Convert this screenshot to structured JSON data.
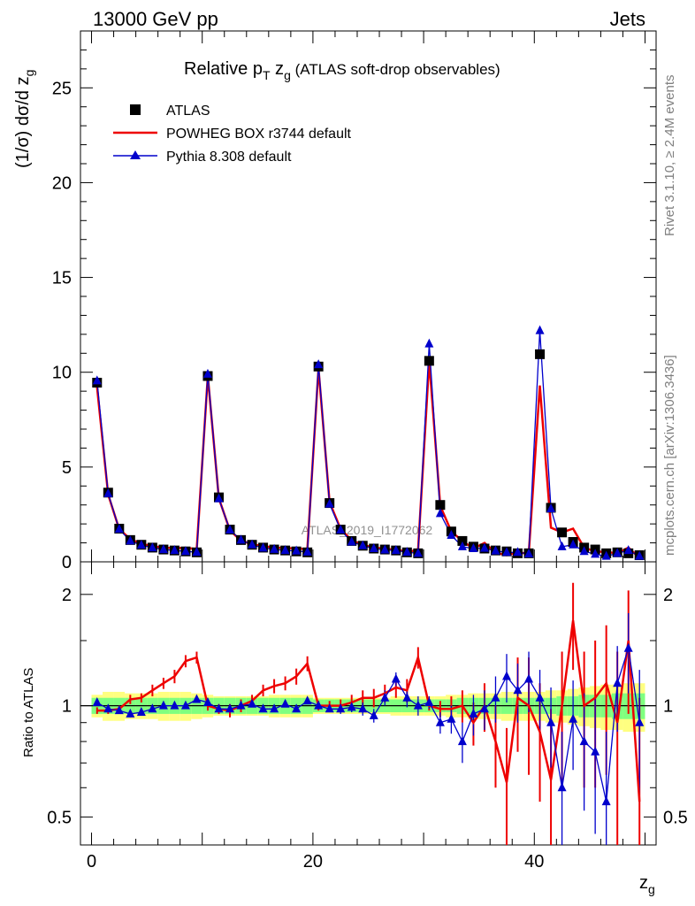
{
  "header": {
    "left": "13000 GeV pp",
    "right": "Jets"
  },
  "side_labels": {
    "rivet": "Rivet 3.1.10, ≥ 2.4M events",
    "mcplots": "mcplots.cern.ch [arXiv:1306.3436]"
  },
  "watermark": "ATLAS_2019_I1772062",
  "title": {
    "main": "Relative p",
    "sub": "T",
    "var": " z",
    "var_sub": "g",
    "rest": " (ATLAS soft-drop observables)"
  },
  "axes": {
    "ylabel_main": "(1/σ) dσ/d z",
    "ylabel_sub": "g",
    "ylabel_ratio": "Ratio to ATLAS",
    "xlabel": "z",
    "xlabel_sub": "g"
  },
  "legend": [
    {
      "name": "ATLAS",
      "color": "#000000",
      "marker": "square"
    },
    {
      "name": "POWHEG BOX r3744 default",
      "color": "#ee0000",
      "marker": "line"
    },
    {
      "name": "Pythia 8.308 default",
      "color": "#0000cc",
      "marker": "triangle"
    }
  ],
  "chart_data": [
    {
      "type": "scatter",
      "panel": "main",
      "xlim": [
        -1,
        51
      ],
      "ylim": [
        0,
        28
      ],
      "yticks": [
        0,
        5,
        10,
        15,
        20,
        25
      ],
      "ytick_labels": [
        "0",
        "5",
        "10",
        "15",
        "20",
        "25"
      ],
      "xticks": [
        0,
        20,
        40
      ],
      "x": [
        0.5,
        1.5,
        2.5,
        3.5,
        4.5,
        5.5,
        6.5,
        7.5,
        8.5,
        9.5,
        10.5,
        11.5,
        12.5,
        13.5,
        14.5,
        15.5,
        16.5,
        17.5,
        18.5,
        19.5,
        20.5,
        21.5,
        22.5,
        23.5,
        24.5,
        25.5,
        26.5,
        27.5,
        28.5,
        29.5,
        30.5,
        31.5,
        32.5,
        33.5,
        34.5,
        35.5,
        36.5,
        37.5,
        38.5,
        39.5,
        40.5,
        41.5,
        42.5,
        43.5,
        44.5,
        45.5,
        46.5,
        47.5,
        48.5,
        49.5
      ],
      "series": [
        {
          "name": "ATLAS",
          "values": [
            9.45,
            3.65,
            1.75,
            1.15,
            0.9,
            0.75,
            0.65,
            0.6,
            0.55,
            0.5,
            9.8,
            3.4,
            1.7,
            1.15,
            0.9,
            0.75,
            0.65,
            0.6,
            0.55,
            0.5,
            10.3,
            3.1,
            1.7,
            1.1,
            0.85,
            0.7,
            0.65,
            0.6,
            0.5,
            0.45,
            10.6,
            3.0,
            1.6,
            1.1,
            0.8,
            0.7,
            0.6,
            0.55,
            0.45,
            0.45,
            10.95,
            2.85,
            1.55,
            1.05,
            0.75,
            0.65,
            0.45,
            0.5,
            0.45,
            0.35
          ]
        },
        {
          "name": "POWHEG BOX r3744 default",
          "values": [
            9.2,
            3.55,
            1.72,
            1.2,
            0.95,
            0.82,
            0.75,
            0.72,
            0.74,
            0.67,
            9.8,
            3.35,
            1.66,
            1.12,
            0.93,
            0.82,
            0.76,
            0.72,
            0.72,
            0.66,
            10.2,
            3.15,
            1.73,
            1.13,
            0.9,
            0.74,
            0.7,
            0.63,
            0.55,
            0.6,
            10.6,
            2.95,
            1.6,
            1.1,
            0.7,
            1.0,
            0.48,
            0.35,
            0.48,
            0.45,
            9.3,
            1.8,
            1.55,
            1.75,
            0.75,
            0.55,
            0.52,
            0.45,
            0.75,
            0.2
          ]
        },
        {
          "name": "Pythia 8.308 default",
          "values": [
            9.55,
            3.6,
            1.72,
            1.1,
            0.88,
            0.74,
            0.65,
            0.6,
            0.55,
            0.51,
            9.9,
            3.33,
            1.68,
            1.15,
            0.9,
            0.73,
            0.66,
            0.6,
            0.58,
            0.52,
            10.4,
            3.05,
            1.68,
            1.05,
            0.85,
            0.7,
            0.63,
            0.6,
            0.51,
            0.45,
            11.5,
            2.55,
            1.4,
            0.8,
            0.7,
            0.72,
            0.58,
            0.5,
            0.5,
            0.42,
            12.2,
            2.8,
            0.8,
            0.9,
            0.55,
            0.4,
            0.3,
            0.45,
            0.6,
            0.3
          ]
        }
      ]
    },
    {
      "type": "scatter",
      "panel": "ratio",
      "ylabel": "Ratio to ATLAS",
      "xlabel": "zg",
      "xlim": [
        -1,
        51
      ],
      "ylim": [
        0.42,
        2.45
      ],
      "yscale": "log",
      "yticks": [
        0.5,
        1,
        2
      ],
      "ytick_labels": [
        "0.5",
        "1",
        "2"
      ],
      "xticks": [
        0,
        20,
        40
      ],
      "xtick_labels": [
        "0",
        "20",
        "40"
      ],
      "x": [
        0.5,
        1.5,
        2.5,
        3.5,
        4.5,
        5.5,
        6.5,
        7.5,
        8.5,
        9.5,
        10.5,
        11.5,
        12.5,
        13.5,
        14.5,
        15.5,
        16.5,
        17.5,
        18.5,
        19.5,
        20.5,
        21.5,
        22.5,
        23.5,
        24.5,
        25.5,
        26.5,
        27.5,
        28.5,
        29.5,
        30.5,
        31.5,
        32.5,
        33.5,
        34.5,
        35.5,
        36.5,
        37.5,
        38.5,
        39.5,
        40.5,
        41.5,
        42.5,
        43.5,
        44.5,
        45.5,
        46.5,
        47.5,
        48.5,
        49.5
      ],
      "band_stat": [
        0.05,
        0.05,
        0.05,
        0.05,
        0.05,
        0.05,
        0.05,
        0.05,
        0.05,
        0.05,
        0.05,
        0.05,
        0.05,
        0.05,
        0.05,
        0.05,
        0.05,
        0.05,
        0.05,
        0.05,
        0.04,
        0.04,
        0.04,
        0.04,
        0.04,
        0.04,
        0.04,
        0.04,
        0.04,
        0.04,
        0.04,
        0.04,
        0.04,
        0.05,
        0.05,
        0.05,
        0.05,
        0.05,
        0.05,
        0.05,
        0.05,
        0.05,
        0.06,
        0.06,
        0.07,
        0.07,
        0.07,
        0.08,
        0.08,
        0.08
      ],
      "band_total": [
        0.07,
        0.09,
        0.09,
        0.08,
        0.08,
        0.08,
        0.09,
        0.09,
        0.09,
        0.08,
        0.07,
        0.06,
        0.06,
        0.06,
        0.06,
        0.06,
        0.07,
        0.07,
        0.07,
        0.07,
        0.05,
        0.05,
        0.05,
        0.05,
        0.05,
        0.05,
        0.05,
        0.06,
        0.06,
        0.06,
        0.06,
        0.06,
        0.07,
        0.07,
        0.08,
        0.08,
        0.08,
        0.09,
        0.09,
        0.09,
        0.09,
        0.1,
        0.1,
        0.11,
        0.12,
        0.13,
        0.14,
        0.14,
        0.15,
        0.15
      ],
      "series": [
        {
          "name": "POWHEG BOX r3744 default",
          "values": [
            0.97,
            0.97,
            0.98,
            1.04,
            1.05,
            1.1,
            1.15,
            1.2,
            1.32,
            1.35,
            1.0,
            0.98,
            0.97,
            1.0,
            1.03,
            1.1,
            1.13,
            1.15,
            1.2,
            1.3,
            1.0,
            1.0,
            1.0,
            1.02,
            1.05,
            1.05,
            1.08,
            1.12,
            1.1,
            1.35,
            1.0,
            0.98,
            0.98,
            1.0,
            0.9,
            1.0,
            0.8,
            0.62,
            1.05,
            1.0,
            0.85,
            0.63,
            1.0,
            1.7,
            1.0,
            1.05,
            1.15,
            0.9,
            1.5,
            0.55
          ],
          "err": [
            0.02,
            0.02,
            0.02,
            0.03,
            0.03,
            0.04,
            0.04,
            0.05,
            0.05,
            0.05,
            0.03,
            0.03,
            0.04,
            0.04,
            0.04,
            0.04,
            0.05,
            0.05,
            0.06,
            0.06,
            0.03,
            0.03,
            0.04,
            0.05,
            0.05,
            0.06,
            0.06,
            0.07,
            0.08,
            0.09,
            0.03,
            0.05,
            0.08,
            0.1,
            0.12,
            0.15,
            0.2,
            0.25,
            0.3,
            0.35,
            0.3,
            0.35,
            0.4,
            0.45,
            0.4,
            0.45,
            0.5,
            0.5,
            0.55,
            0.5
          ]
        },
        {
          "name": "Pythia 8.308 default",
          "values": [
            1.02,
            0.98,
            0.97,
            0.95,
            0.96,
            0.98,
            1.0,
            1.0,
            1.0,
            1.04,
            1.02,
            0.98,
            0.98,
            1.0,
            1.01,
            0.98,
            0.98,
            1.01,
            0.98,
            1.03,
            1.0,
            0.98,
            0.98,
            0.99,
            0.98,
            0.94,
            1.05,
            1.18,
            1.05,
            1.0,
            1.02,
            0.9,
            0.92,
            0.8,
            0.95,
            0.98,
            1.05,
            1.2,
            1.1,
            1.18,
            1.05,
            0.9,
            0.6,
            0.92,
            0.8,
            0.75,
            0.55,
            1.15,
            1.43,
            0.9
          ],
          "err": [
            0.02,
            0.02,
            0.02,
            0.02,
            0.02,
            0.02,
            0.02,
            0.02,
            0.02,
            0.02,
            0.02,
            0.02,
            0.02,
            0.02,
            0.02,
            0.02,
            0.02,
            0.02,
            0.02,
            0.02,
            0.02,
            0.02,
            0.03,
            0.03,
            0.04,
            0.04,
            0.05,
            0.05,
            0.06,
            0.06,
            0.04,
            0.06,
            0.08,
            0.1,
            0.12,
            0.12,
            0.15,
            0.18,
            0.2,
            0.22,
            0.2,
            0.22,
            0.25,
            0.25,
            0.28,
            0.3,
            0.3,
            0.3,
            0.35,
            0.35
          ]
        }
      ]
    }
  ]
}
